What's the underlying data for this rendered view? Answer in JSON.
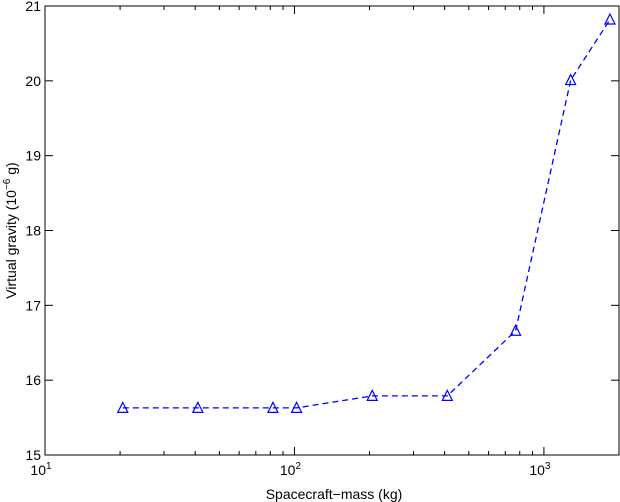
{
  "chart_data": {
    "type": "line",
    "title": "",
    "xlabel": "Spacecraft−mass (kg)",
    "ylabel": {
      "prefix": "Virtual gravity (10",
      "exponent": "−6",
      "suffix": " g)"
    },
    "xscale": "log",
    "xlim": [
      10,
      2000
    ],
    "ylim": [
      15,
      21
    ],
    "x_ticks": [
      {
        "value": 10,
        "base": "10",
        "exp": "1"
      },
      {
        "value": 100,
        "base": "10",
        "exp": "2"
      },
      {
        "value": 1000,
        "base": "10",
        "exp": "3"
      }
    ],
    "y_ticks": [
      {
        "value": 15,
        "label": "15"
      },
      {
        "value": 16,
        "label": "16"
      },
      {
        "value": 17,
        "label": "17"
      },
      {
        "value": 18,
        "label": "18"
      },
      {
        "value": 19,
        "label": "19"
      },
      {
        "value": 20,
        "label": "20"
      },
      {
        "value": 21,
        "label": "21"
      }
    ],
    "grid": false,
    "series": [
      {
        "color": "#0000ff",
        "marker": "triangle",
        "line_style": "dashed",
        "x": [
          20.5,
          41,
          82,
          102,
          205,
          410,
          770,
          1280,
          1840
        ],
        "y": [
          15.63,
          15.63,
          15.63,
          15.63,
          15.79,
          15.79,
          16.66,
          20.01,
          20.82
        ]
      }
    ]
  }
}
